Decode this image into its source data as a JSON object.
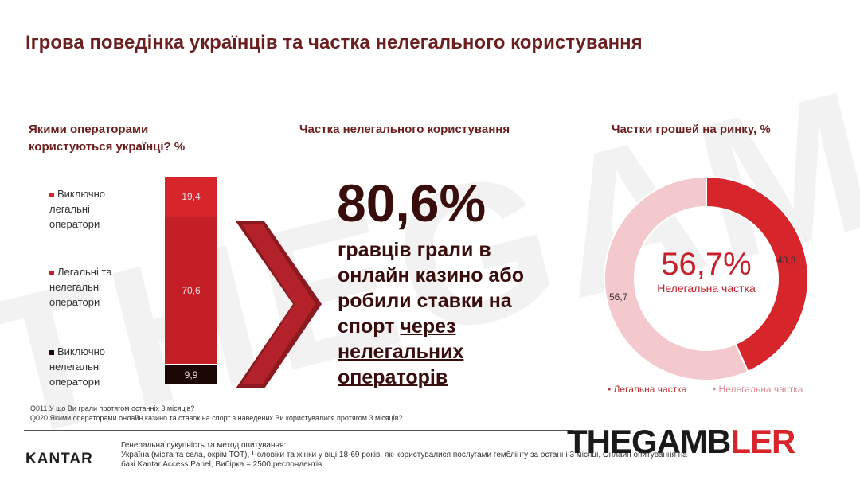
{
  "title": "Ігрова поведінка українців та частка нелегального користування",
  "watermark": "THEGAMBLER",
  "colors": {
    "dark_red": "#3a0d0d",
    "red": "#d7262b",
    "light_pink": "#f4c9ce",
    "black_seg": "#1b0606"
  },
  "left": {
    "heading_line1": "Якими операторами",
    "heading_line2": "користуються українці? %",
    "legend": [
      {
        "line1": "Виключно",
        "line2": "легальні",
        "line3": "оператори"
      },
      {
        "line1": "Легальні та",
        "line2": "нелегальні",
        "line3": "оператори"
      },
      {
        "line1": "Виключно",
        "line2": "нелегальні",
        "line3": "оператори"
      }
    ]
  },
  "middle": {
    "heading": "Частка нелегального користування",
    "big_number": "80,6%",
    "text_plain": "гравців грали в онлайн казино або робили ставки на спорт ",
    "text_underlined": "через нелегальних операторів"
  },
  "right": {
    "heading": "Частки грошей на ринку, %",
    "center_pct": "56,7%",
    "center_label": "Нелегальна частка",
    "legend_legal": "Легальна частка",
    "legend_illegal": "Нелегальна частка"
  },
  "chart_data": [
    {
      "type": "bar",
      "title": "Якими операторами користуються українці? %",
      "stacked": true,
      "categories": [
        ""
      ],
      "series": [
        {
          "name": "Виключно легальні оператори",
          "values": [
            19.4
          ],
          "label": "19,4",
          "color": "#d7262b"
        },
        {
          "name": "Легальні та нелегальні оператори",
          "values": [
            70.6
          ],
          "label": "70,6",
          "color": "#c41e26"
        },
        {
          "name": "Виключно нелегальні оператори",
          "values": [
            9.9
          ],
          "label": "9,9",
          "color": "#1b0606"
        }
      ]
    },
    {
      "type": "pie",
      "title": "Частки грошей на ринку, %",
      "donut": true,
      "slices": [
        {
          "name": "Легальна частка",
          "value": 43.3,
          "label": "43,3",
          "color": "#d7262b"
        },
        {
          "name": "Нелегальна частка",
          "value": 56.7,
          "label": "56,7",
          "color": "#f4c9ce"
        }
      ]
    }
  ],
  "footnotes": {
    "q011": "Q011  У що Ви грали протягом останніх 3 місяців?",
    "q020": "Q020  Якими операторами онлайн казино та ставок на спорт з наведених Ви користувалися протягом 3 місяців?"
  },
  "footer": {
    "brand": "KANTAR",
    "method_line1": "Генеральна сукупність та метод опитування:",
    "method_line2": "Україна (міста та села, окрім ТОТ), Чоловіки та жінки у віці 18-69 років, які користувалися послугами гемблінгу за останні 3 місяці, Онлайн опитування на базі Kantar Access Panel, Вибірка = 2500 респондентів"
  },
  "logo": {
    "part1": "THEGAMB",
    "part2": "LER"
  }
}
